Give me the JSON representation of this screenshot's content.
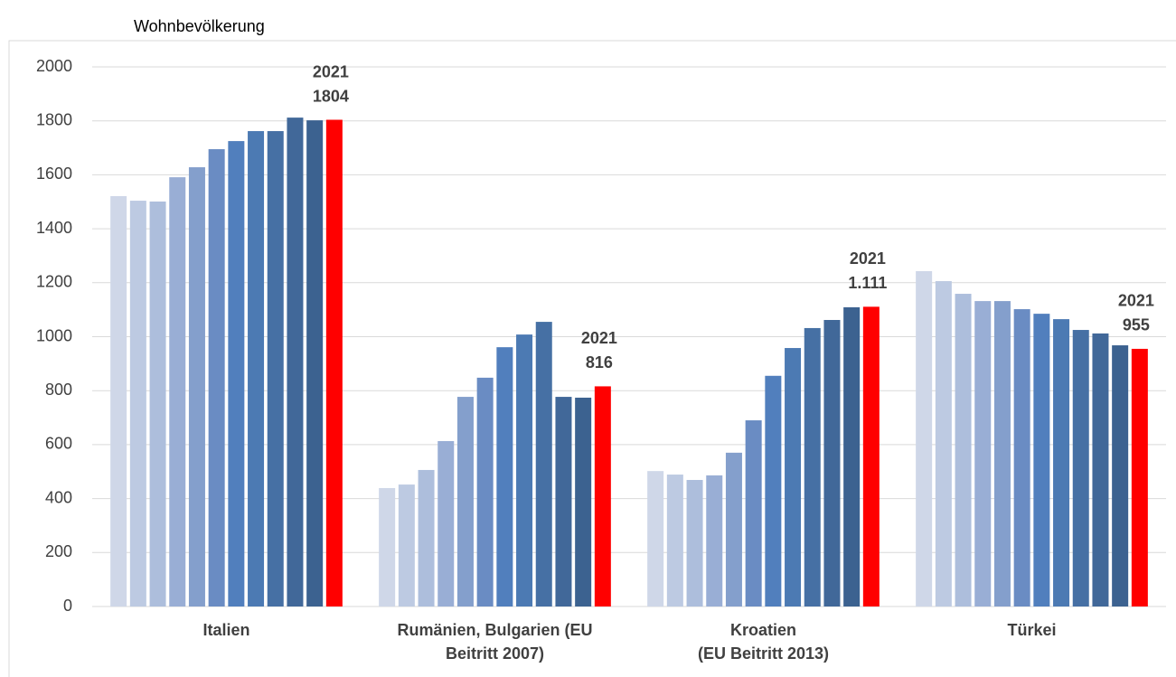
{
  "chart_data": {
    "type": "bar",
    "title": "Wohnbevölkerung",
    "categories": [
      "Italien",
      "Rumänien, Bulgarien (EU\nBeitritt 2007)",
      "Kroatien\n(EU Beitritt 2013)",
      "Türkei"
    ],
    "series": [
      {
        "color": "#cfd7e8",
        "values": [
          1521,
          439,
          502,
          1243
        ]
      },
      {
        "color": "#bdcae2",
        "values": [
          1504,
          452,
          489,
          1206
        ]
      },
      {
        "color": "#adbedc",
        "values": [
          1501,
          506,
          469,
          1159
        ]
      },
      {
        "color": "#99aed5",
        "values": [
          1591,
          613,
          486,
          1132
        ]
      },
      {
        "color": "#849fcc",
        "values": [
          1628,
          777,
          570,
          1132
        ]
      },
      {
        "color": "#6a8cc3",
        "values": [
          1695,
          848,
          690,
          1102
        ]
      },
      {
        "color": "#517fbd",
        "values": [
          1725,
          961,
          855,
          1085
        ]
      },
      {
        "color": "#4c7ab3",
        "values": [
          1762,
          1008,
          958,
          1065
        ]
      },
      {
        "color": "#4670a4",
        "values": [
          1762,
          1055,
          1032,
          1025
        ]
      },
      {
        "color": "#416899",
        "values": [
          1812,
          777,
          1062,
          1012
        ]
      },
      {
        "color": "#3c6290",
        "values": [
          1802,
          774,
          1109,
          968
        ]
      },
      {
        "name": "2021",
        "color": "#ff0000",
        "values": [
          1804,
          816,
          1111,
          955
        ],
        "value_labels": [
          "1804",
          "816",
          "1.111",
          "955"
        ]
      }
    ],
    "ylim": [
      0,
      2000
    ],
    "yticks": [
      0,
      200,
      400,
      600,
      800,
      1000,
      1200,
      1400,
      1600,
      1800,
      2000
    ],
    "grid": true
  }
}
